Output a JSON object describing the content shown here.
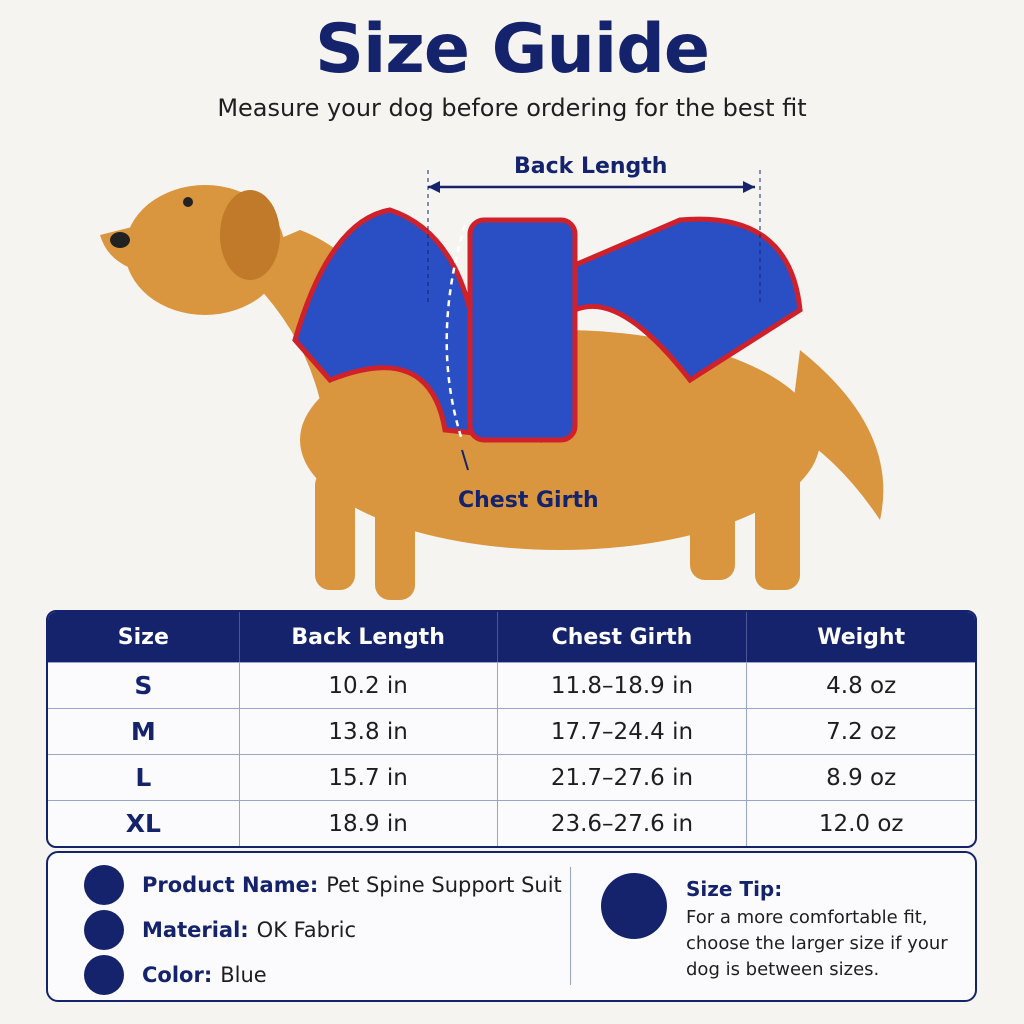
{
  "header": {
    "title": "Size Guide",
    "subtitle": "Measure your dog before ordering for the best fit"
  },
  "diagram": {
    "back_length": "Back Length",
    "chest_girth": "Chest Girth"
  },
  "table": {
    "columns": [
      "Size",
      "Back Length",
      "Chest Girth",
      "Weight"
    ],
    "rows": [
      [
        "S",
        "10.2 in",
        "11.8–18.9 in",
        "4.8 oz"
      ],
      [
        "M",
        "13.8 in",
        "17.7–24.4 in",
        "7.2 oz"
      ],
      [
        "L",
        "15.7 in",
        "21.7–27.6 in",
        "8.9 oz"
      ],
      [
        "XL",
        "18.9 in",
        "23.6–27.6 in",
        "12.0 oz"
      ]
    ]
  },
  "info": {
    "items": [
      {
        "label": "Product Name:",
        "value": "Pet Spine Support Suit"
      },
      {
        "label": "Material:",
        "value": "OK Fabric"
      },
      {
        "label": "Color:",
        "value": "Blue"
      }
    ]
  },
  "tip": {
    "title": "Size Tip:",
    "text": "For a more comfortable fit, choose the larger size if your dog is between sizes."
  }
}
